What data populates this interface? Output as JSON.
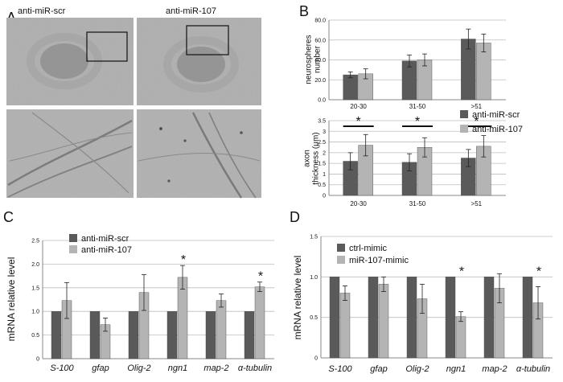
{
  "colors": {
    "dark": "#5a5a5a",
    "light": "#b4b4b4",
    "axis": "#888888",
    "grid": "#bdbdbd"
  },
  "panel_a": {
    "letter": "A",
    "labels": [
      "anti-miR-scr",
      "anti-miR-107"
    ]
  },
  "chart_data": [
    {
      "id": "B_top",
      "letter": "B",
      "type": "bar",
      "title": "",
      "xlabel": "",
      "ylabel": "neurospheres number",
      "ylim": [
        0,
        80
      ],
      "yticks": [
        "0.0",
        "20.0",
        "40.0",
        "60.0",
        "80.0"
      ],
      "grid": true,
      "categories": [
        "20-30",
        "31-50",
        ">51"
      ],
      "series": [
        {
          "name": "anti-miR-scr",
          "values": [
            25,
            39,
            61
          ],
          "errors": [
            3,
            6,
            10
          ]
        },
        {
          "name": "anti-miR-107",
          "values": [
            26,
            40,
            57
          ],
          "errors": [
            5,
            6,
            9
          ]
        }
      ]
    },
    {
      "id": "B_bottom",
      "type": "bar",
      "title": "",
      "xlabel": "",
      "ylabel": "axon thickness (μm)",
      "ylim": [
        0,
        3.5
      ],
      "yticks": [
        "0",
        "0.5",
        "1",
        "1.5",
        "2",
        "2.5",
        "3",
        "3.5"
      ],
      "grid": true,
      "categories": [
        "20-30",
        "31-50",
        ">51"
      ],
      "series": [
        {
          "name": "anti-miR-scr",
          "values": [
            1.6,
            1.55,
            1.75
          ],
          "errors": [
            0.4,
            0.4,
            0.4
          ]
        },
        {
          "name": "anti-miR-107",
          "values": [
            2.35,
            2.25,
            2.3
          ],
          "errors": [
            0.5,
            0.45,
            0.5
          ]
        }
      ],
      "significance": [
        "*",
        "*",
        "*"
      ],
      "legend": {
        "placement": "right",
        "entries": [
          "anti-miR-scr",
          "anti-miR-107"
        ]
      }
    },
    {
      "id": "C",
      "letter": "C",
      "type": "bar",
      "title": "",
      "xlabel": "",
      "ylabel": "mRNA relative level",
      "ylim": [
        0,
        2.5
      ],
      "yticks": [
        "0",
        "0.5",
        "1.0",
        "1.5",
        "2.0",
        "2.5"
      ],
      "grid": true,
      "categories": [
        "S-100",
        "gfap",
        "Olig-2",
        "ngn1",
        "map-2",
        "α-tubulin"
      ],
      "series": [
        {
          "name": "anti-miR-scr",
          "values": [
            1.0,
            1.0,
            1.0,
            1.0,
            1.0,
            1.0
          ],
          "errors": [
            0,
            0,
            0,
            0,
            0,
            0
          ]
        },
        {
          "name": "anti-miR-107",
          "values": [
            1.23,
            0.72,
            1.4,
            1.72,
            1.23,
            1.52
          ],
          "errors": [
            0.38,
            0.14,
            0.38,
            0.25,
            0.14,
            0.1
          ]
        }
      ],
      "significance": [
        "",
        "",
        "",
        "*",
        "",
        "*"
      ],
      "legend": {
        "placement": "top-left",
        "entries": [
          "anti-miR-scr",
          "anti-miR-107"
        ]
      }
    },
    {
      "id": "D",
      "letter": "D",
      "type": "bar",
      "title": "",
      "xlabel": "",
      "ylabel": "mRNA relative level",
      "ylim": [
        0,
        1.5
      ],
      "yticks": [
        "0",
        "0.5",
        "1.0",
        "1.5"
      ],
      "grid": true,
      "categories": [
        "S-100",
        "gfap",
        "Olig-2",
        "ngn1",
        "map-2",
        "α-tubulin"
      ],
      "series": [
        {
          "name": "ctrl-mimic",
          "values": [
            1.0,
            1.0,
            1.0,
            1.0,
            1.0,
            1.0
          ],
          "errors": [
            0,
            0,
            0,
            0,
            0,
            0
          ]
        },
        {
          "name": "miR-107-mimic",
          "values": [
            0.8,
            0.91,
            0.73,
            0.51,
            0.86,
            0.68
          ],
          "errors": [
            0.09,
            0.09,
            0.18,
            0.06,
            0.18,
            0.2
          ]
        }
      ],
      "significance": [
        "",
        "",
        "",
        "*",
        "",
        "*"
      ],
      "legend": {
        "placement": "top-left",
        "entries": [
          "ctrl-mimic",
          "miR-107-mimic"
        ]
      }
    }
  ]
}
